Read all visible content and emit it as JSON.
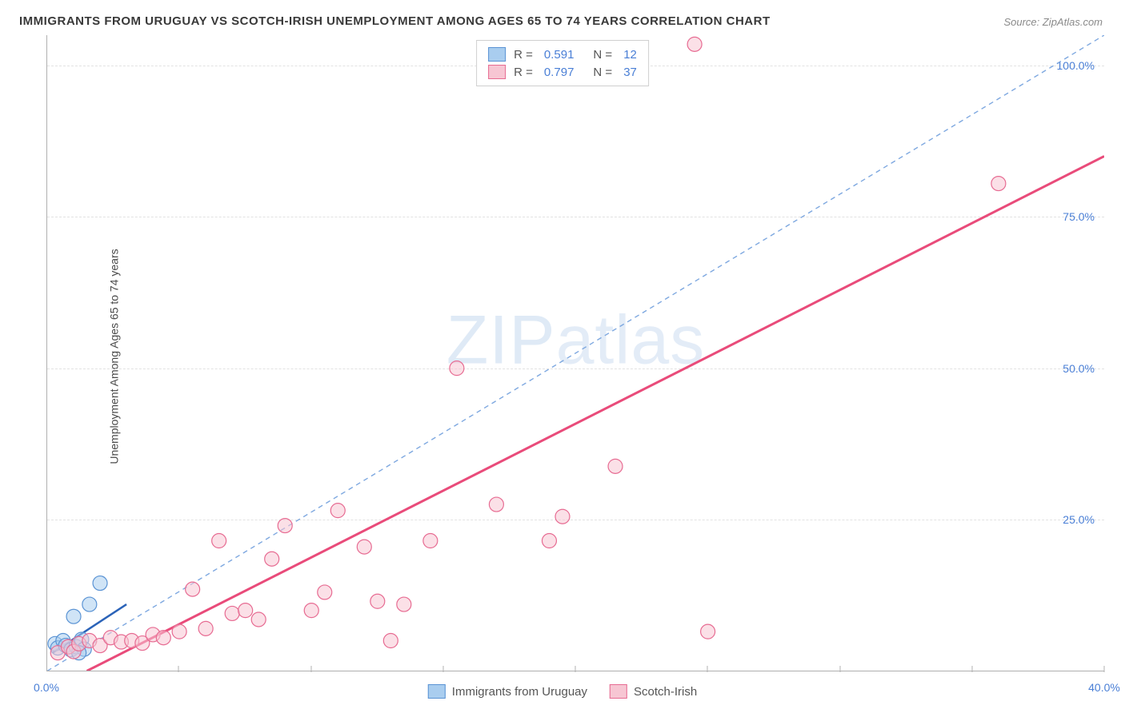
{
  "title": "IMMIGRANTS FROM URUGUAY VS SCOTCH-IRISH UNEMPLOYMENT AMONG AGES 65 TO 74 YEARS CORRELATION CHART",
  "source": "Source: ZipAtlas.com",
  "ylabel": "Unemployment Among Ages 65 to 74 years",
  "watermark_a": "ZIP",
  "watermark_b": "atlas",
  "chart": {
    "type": "scatter",
    "xlim": [
      0,
      40
    ],
    "ylim": [
      0,
      105
    ],
    "xticks": [
      0.0,
      40.0
    ],
    "xtick_marks": [
      5,
      10,
      15,
      20,
      25,
      30,
      35,
      40
    ],
    "yticks": [
      25.0,
      50.0,
      75.0,
      100.0
    ],
    "ytick_labels": [
      "25.0%",
      "50.0%",
      "75.0%",
      "100.0%"
    ],
    "xtick_labels": [
      "0.0%",
      "40.0%"
    ],
    "grid_color": "#e2e2e2",
    "axislabel_color": "#4a7fd6",
    "background_color": "#ffffff",
    "point_radius": 9,
    "point_stroke_width": 1.2,
    "series": [
      {
        "name": "Immigrants from Uruguay",
        "fill": "#a9cdef",
        "stroke": "#5a93d4",
        "fill_opacity": 0.55,
        "trend": {
          "x1": 0.2,
          "y1": 3,
          "x2": 3.0,
          "y2": 11,
          "stroke": "#2b63b8",
          "width": 2.5,
          "dash": "none"
        },
        "reference": {
          "x1": 0,
          "y1": 0,
          "x2": 40,
          "y2": 105,
          "stroke": "#7ea8e0",
          "width": 1.4,
          "dash": "6 5"
        },
        "points": [
          [
            0.3,
            4.5
          ],
          [
            0.4,
            3.8
          ],
          [
            0.6,
            5.0
          ],
          [
            0.7,
            4.2
          ],
          [
            0.9,
            3.5
          ],
          [
            1.0,
            9.0
          ],
          [
            1.1,
            4.0
          ],
          [
            1.3,
            5.2
          ],
          [
            1.6,
            11.0
          ],
          [
            1.4,
            3.6
          ],
          [
            2.0,
            14.5
          ],
          [
            1.2,
            3.0
          ]
        ]
      },
      {
        "name": "Scotch-Irish",
        "fill": "#f7c6d3",
        "stroke": "#e76b92",
        "fill_opacity": 0.55,
        "trend": {
          "x1": 1.5,
          "y1": 0,
          "x2": 40,
          "y2": 85,
          "stroke": "#e94b7a",
          "width": 3,
          "dash": "none"
        },
        "points": [
          [
            0.4,
            3.0
          ],
          [
            0.8,
            4.0
          ],
          [
            1.0,
            3.2
          ],
          [
            1.2,
            4.5
          ],
          [
            1.6,
            5.0
          ],
          [
            2.0,
            4.2
          ],
          [
            2.4,
            5.5
          ],
          [
            2.8,
            4.8
          ],
          [
            3.2,
            5.0
          ],
          [
            3.6,
            4.6
          ],
          [
            4.0,
            6.0
          ],
          [
            4.4,
            5.5
          ],
          [
            5.0,
            6.5
          ],
          [
            5.5,
            13.5
          ],
          [
            6.0,
            7.0
          ],
          [
            6.5,
            21.5
          ],
          [
            7.0,
            9.5
          ],
          [
            7.5,
            10.0
          ],
          [
            8.0,
            8.5
          ],
          [
            8.5,
            18.5
          ],
          [
            9.0,
            24.0
          ],
          [
            10.0,
            10.0
          ],
          [
            10.5,
            13.0
          ],
          [
            11.0,
            26.5
          ],
          [
            12.0,
            20.5
          ],
          [
            12.5,
            11.5
          ],
          [
            13.0,
            5.0
          ],
          [
            13.5,
            11.0
          ],
          [
            14.5,
            21.5
          ],
          [
            15.5,
            50.0
          ],
          [
            17.0,
            27.5
          ],
          [
            19.0,
            21.5
          ],
          [
            19.5,
            25.5
          ],
          [
            21.5,
            33.8
          ],
          [
            25.0,
            6.5
          ],
          [
            24.5,
            103.5
          ],
          [
            36.0,
            80.5
          ]
        ]
      }
    ],
    "legend_top": [
      {
        "swatch_fill": "#a9cdef",
        "swatch_stroke": "#5a93d4",
        "r_label": "R =",
        "r_value": "0.591",
        "n_label": "N =",
        "n_value": "12"
      },
      {
        "swatch_fill": "#f7c6d3",
        "swatch_stroke": "#e76b92",
        "r_label": "R =",
        "r_value": "0.797",
        "n_label": "N =",
        "n_value": "37"
      }
    ],
    "legend_bottom": [
      {
        "swatch_fill": "#a9cdef",
        "swatch_stroke": "#5a93d4",
        "label": "Immigrants from Uruguay"
      },
      {
        "swatch_fill": "#f7c6d3",
        "swatch_stroke": "#e76b92",
        "label": "Scotch-Irish"
      }
    ]
  }
}
